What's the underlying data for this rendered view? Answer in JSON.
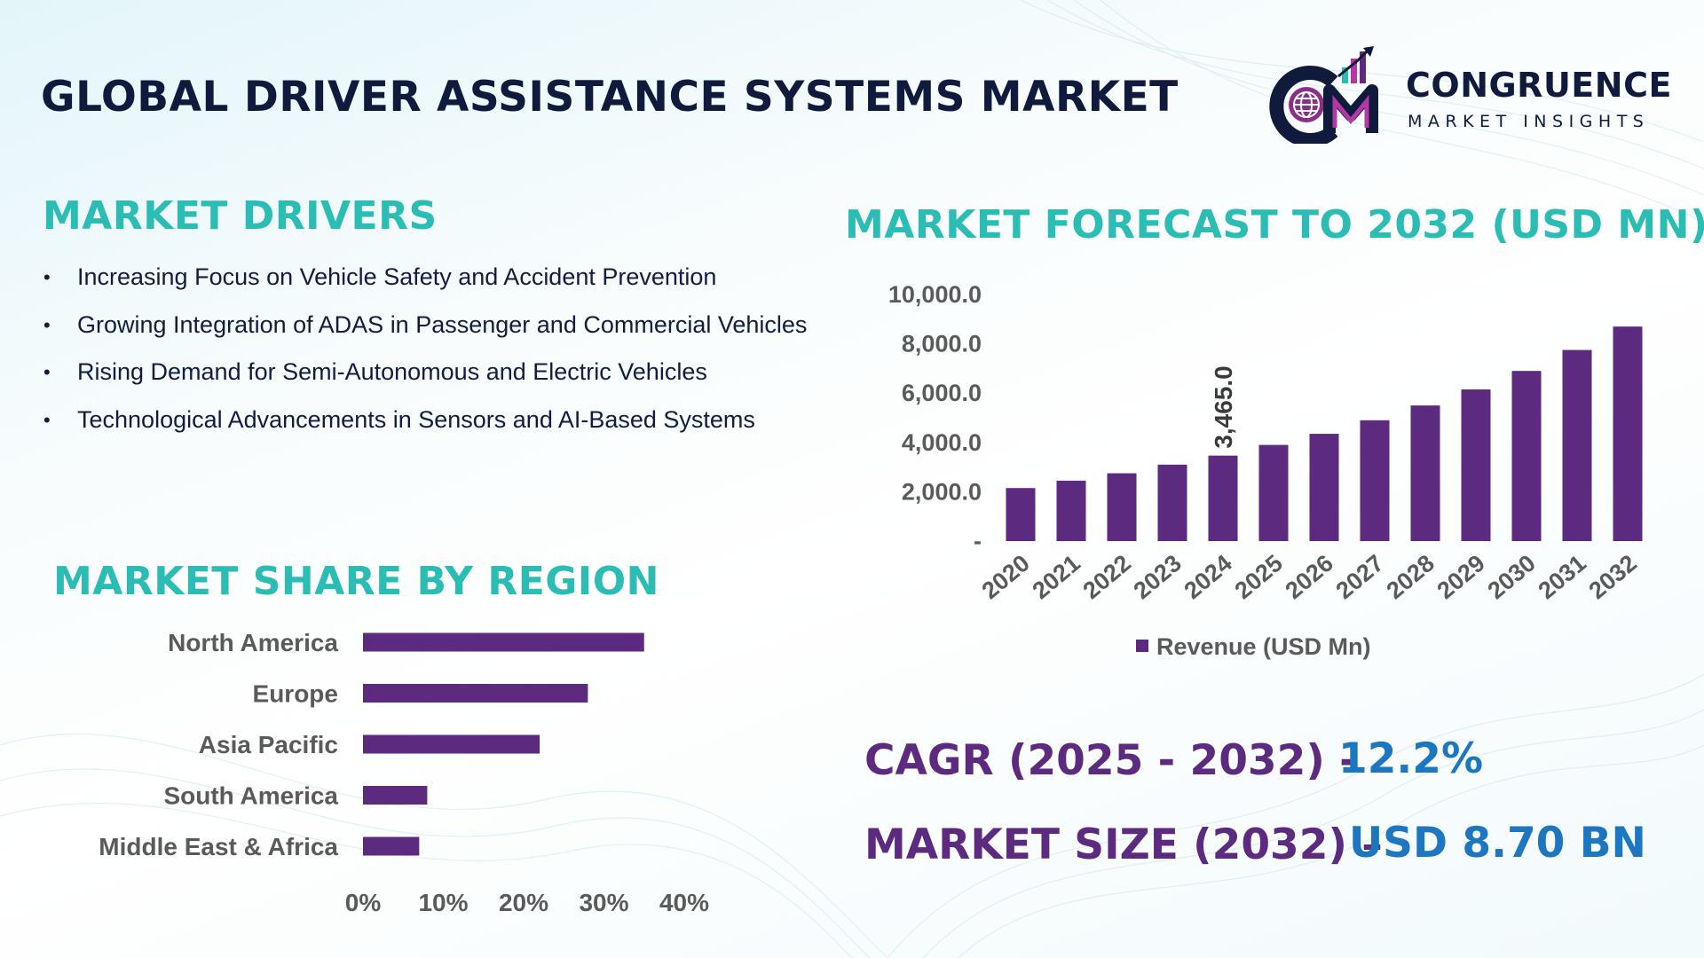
{
  "title": "GLOBAL DRIVER ASSISTANCE SYSTEMS MARKET",
  "logo": {
    "name": "CONGRUENCE",
    "tagline": "MARKET INSIGHTS",
    "icon": "globe-bar-chart-logo-icon"
  },
  "drivers": {
    "heading": "MARKET DRIVERS",
    "items": [
      "Increasing Focus on Vehicle Safety and Accident Prevention",
      "Growing Integration of ADAS in Passenger and Commercial Vehicles",
      "Rising Demand for Semi-Autonomous and Electric Vehicles",
      "Technological Advancements in Sensors and AI-Based Systems"
    ]
  },
  "forecast": {
    "heading": "MARKET FORECAST TO 2032 (USD MN)"
  },
  "share": {
    "heading": "MARKET SHARE BY REGION"
  },
  "stats": {
    "cagr_label": "CAGR (2025 - 2032) -",
    "cagr_value": "12.2%",
    "size_label": "MARKET SIZE (2032) –",
    "size_value": "USD 8.70 BN"
  },
  "colors": {
    "bar": "#5c2a7e",
    "heading": "#2bbcb3",
    "title": "#101a3c",
    "stat_value": "#1c76c0"
  },
  "chart_data": [
    {
      "type": "bar",
      "title": "MARKET FORECAST TO 2032 (USD MN)",
      "categories": [
        "2020",
        "2021",
        "2022",
        "2023",
        "2024",
        "2025",
        "2026",
        "2027",
        "2028",
        "2029",
        "2030",
        "2031",
        "2032"
      ],
      "series": [
        {
          "name": "Revenue (USD Mn)",
          "values": [
            2150,
            2450,
            2750,
            3100,
            3465,
            3900,
            4350,
            4900,
            5500,
            6150,
            6900,
            7750,
            8700
          ]
        }
      ],
      "data_labels": [
        {
          "category": "2024",
          "label": "3,465.0"
        }
      ],
      "yticks": [
        "-",
        "2,000.0",
        "4,000.0",
        "6,000.0",
        "8,000.0",
        "10,000.0"
      ],
      "ylim": [
        0,
        10000
      ],
      "grid": false,
      "legend": "bottom",
      "xlabel": "",
      "ylabel": ""
    },
    {
      "type": "bar",
      "orientation": "horizontal",
      "title": "MARKET SHARE BY REGION",
      "categories": [
        "North America",
        "Europe",
        "Asia Pacific",
        "South America",
        "Middle East & Africa"
      ],
      "values": [
        35,
        28,
        22,
        8,
        7
      ],
      "xticks": [
        "0%",
        "10%",
        "20%",
        "30%",
        "40%"
      ],
      "xlim": [
        0,
        40
      ],
      "unit": "%",
      "grid": false
    }
  ]
}
